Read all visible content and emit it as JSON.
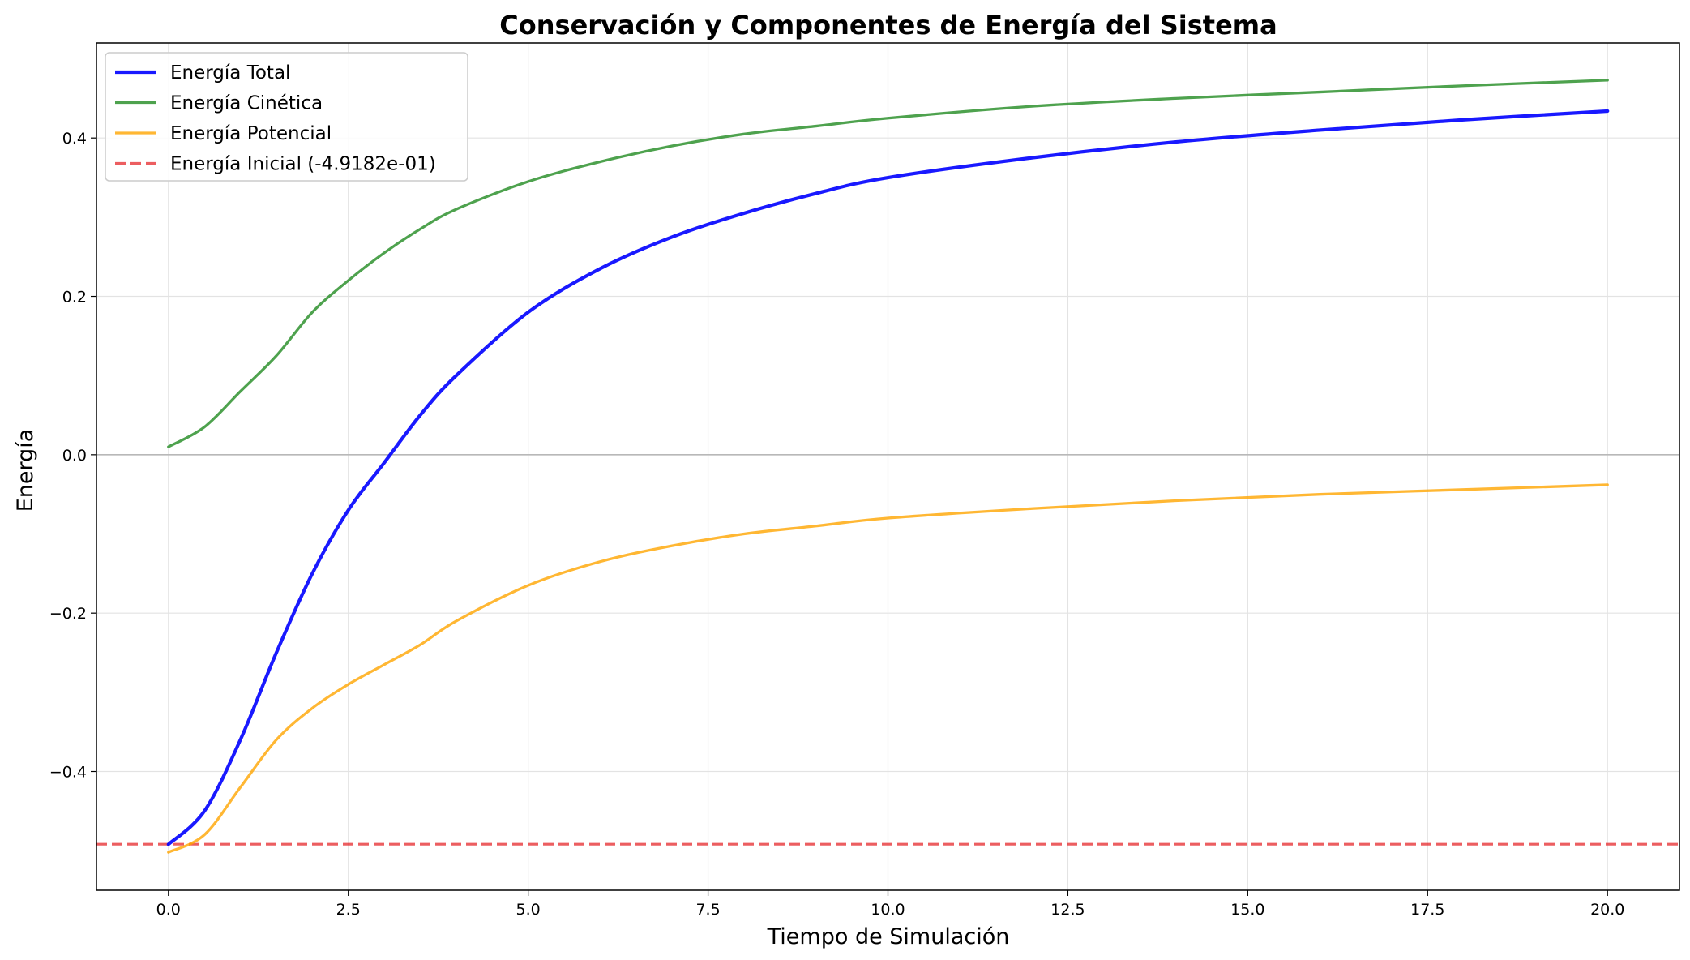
{
  "chart_data": {
    "type": "line",
    "title": "Conservación y Componentes de Energía del Sistema",
    "xlabel": "Tiempo de Simulación",
    "ylabel": "Energía",
    "xlim": [
      -1.0,
      21.0
    ],
    "ylim": [
      -0.55,
      0.52
    ],
    "x_ticks": [
      0.0,
      2.5,
      5.0,
      7.5,
      10.0,
      12.5,
      15.0,
      17.5,
      20.0
    ],
    "x_tick_labels": [
      "0.0",
      "2.5",
      "5.0",
      "7.5",
      "10.0",
      "12.5",
      "15.0",
      "17.5",
      "20.0"
    ],
    "y_ticks": [
      -0.4,
      -0.2,
      0.0,
      0.2,
      0.4
    ],
    "y_tick_labels": [
      "−0.4",
      "−0.2",
      "0.0",
      "0.2",
      "0.4"
    ],
    "grid": true,
    "legend_position": "top-left",
    "x": [
      0,
      0.5,
      1,
      1.5,
      2,
      2.5,
      3,
      3.5,
      4,
      5,
      6,
      7,
      8,
      9,
      10,
      12,
      14,
      16,
      18,
      20
    ],
    "series": [
      {
        "name": "Energía Total",
        "color": "#0000ff",
        "style": "solid",
        "values": [
          -0.492,
          -0.45,
          -0.36,
          -0.25,
          -0.15,
          -0.07,
          -0.01,
          0.05,
          0.1,
          0.18,
          0.235,
          0.275,
          0.305,
          0.33,
          0.35,
          0.375,
          0.395,
          0.41,
          0.423,
          0.434
        ]
      },
      {
        "name": "Energía Cinética",
        "color": "#228b22",
        "style": "solid",
        "values": [
          0.01,
          0.035,
          0.08,
          0.125,
          0.18,
          0.22,
          0.255,
          0.285,
          0.31,
          0.345,
          0.37,
          0.39,
          0.405,
          0.415,
          0.425,
          0.44,
          0.45,
          0.458,
          0.466,
          0.473
        ]
      },
      {
        "name": "Energía Potencial",
        "color": "#ffa500",
        "style": "solid",
        "values": [
          -0.502,
          -0.48,
          -0.42,
          -0.36,
          -0.32,
          -0.29,
          -0.265,
          -0.24,
          -0.21,
          -0.165,
          -0.135,
          -0.115,
          -0.1,
          -0.09,
          -0.08,
          -0.068,
          -0.058,
          -0.05,
          -0.044,
          -0.038
        ]
      }
    ],
    "reference_line": {
      "name": "Energía Inicial (-4.9182e-01)",
      "y": -0.49182,
      "color": "#e41a1c",
      "style": "dashed"
    },
    "zero_line": true
  }
}
